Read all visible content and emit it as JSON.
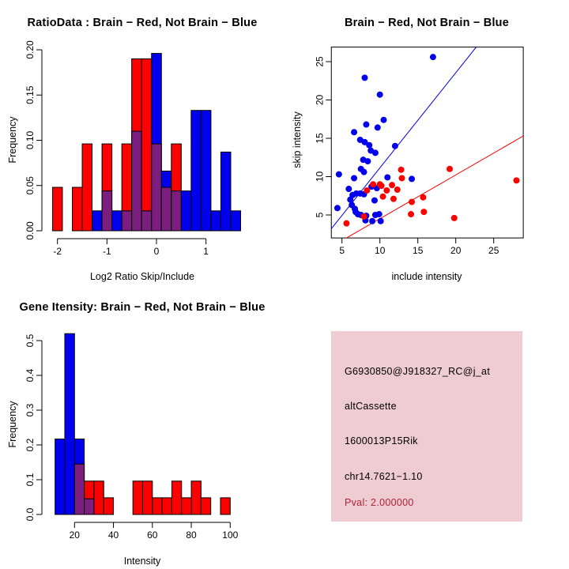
{
  "figure": {
    "background": "#ffffff",
    "colors": {
      "brain_red": "#ff0000",
      "not_brain_blue": "#0000ee",
      "overlap_purple": "#7c1d80",
      "axis": "#000000",
      "info_box_bg": "#eac9d3",
      "pval_text": "#b02235"
    }
  },
  "chart_data": [
    {
      "id": "ratio_histogram",
      "type": "bar",
      "title": "RatioData : Brain − Red, Not Brain − Blue",
      "xlabel": "Log2 Ratio Skip/Include",
      "ylabel": "Frequency",
      "note": "overlapping histograms; purple = red/blue overlap",
      "xlim": [
        -2.35,
        1.85
      ],
      "ylim": [
        0,
        0.2
      ],
      "xticks": [
        "-2",
        "-1",
        "0",
        "1"
      ],
      "xtick_values": [
        -2,
        -1,
        0,
        1
      ],
      "yticks": [
        "0.00",
        "0.05",
        "0.10",
        "0.15",
        "0.20"
      ],
      "ytick_values": [
        0,
        0.05,
        0.1,
        0.15,
        0.2
      ],
      "bins": {
        "start": -2.1,
        "width": 0.2
      },
      "series": [
        {
          "name": "Brain (red)",
          "color_key": "brain_red",
          "values": [
            0.048,
            0,
            0.048,
            0.096,
            0,
            0.096,
            0,
            0.096,
            0.19,
            0.19,
            0.096,
            0.048,
            0.096,
            0,
            0,
            0,
            0,
            0,
            0
          ]
        },
        {
          "name": "Not Brain (blue)",
          "color_key": "not_brain_blue",
          "values": [
            0,
            0,
            0,
            0,
            0.022,
            0.044,
            0.022,
            0.022,
            0.11,
            0.022,
            0.196,
            0.066,
            0.044,
            0.044,
            0.133,
            0.133,
            0.022,
            0.087,
            0.022
          ]
        }
      ]
    },
    {
      "id": "intensity_scatter",
      "type": "scatter",
      "title": "Brain − Red, Not Brain − Blue",
      "xlabel": "include intensity",
      "ylabel": "skip intensity",
      "xlim": [
        3.6,
        28.9
      ],
      "ylim": [
        2.0,
        26.9
      ],
      "xticks": [
        "5",
        "10",
        "15",
        "20",
        "25"
      ],
      "xtick_values": [
        5,
        10,
        15,
        20,
        25
      ],
      "yticks": [
        "5",
        "10",
        "15",
        "20",
        "25"
      ],
      "ytick_values": [
        5,
        10,
        15,
        20,
        25
      ],
      "series": [
        {
          "name": "Not Brain (blue)",
          "color_key": "not_brain_blue",
          "points": [
            [
              17,
              25.6
            ],
            [
              8,
              22.9
            ],
            [
              10,
              20.7
            ],
            [
              10.5,
              17.4
            ],
            [
              8.2,
              16.8
            ],
            [
              9.7,
              16.4
            ],
            [
              6.6,
              15.8
            ],
            [
              7.4,
              14.8
            ],
            [
              8,
              14.5
            ],
            [
              8.6,
              14.1
            ],
            [
              12,
              14
            ],
            [
              8.8,
              13.4
            ],
            [
              9.4,
              13.1
            ],
            [
              7.8,
              12.2
            ],
            [
              8.4,
              12
            ],
            [
              7.5,
              11
            ],
            [
              7.9,
              10.6
            ],
            [
              4.6,
              10.3
            ],
            [
              6.6,
              9.8
            ],
            [
              11,
              9.9
            ],
            [
              14.2,
              9.7
            ],
            [
              5.9,
              8.4
            ],
            [
              8.9,
              8.7
            ],
            [
              9.6,
              8.5
            ],
            [
              6.9,
              7.8
            ],
            [
              7.4,
              7.8
            ],
            [
              7.9,
              7.7
            ],
            [
              6.4,
              7.6
            ],
            [
              6.1,
              7
            ],
            [
              9.3,
              6.9
            ],
            [
              6.3,
              6.3
            ],
            [
              4.4,
              5.9
            ],
            [
              6.7,
              5.8
            ],
            [
              6.8,
              5.4
            ],
            [
              7.1,
              5.1
            ],
            [
              7.5,
              5
            ],
            [
              8.2,
              4.9
            ],
            [
              9.4,
              5
            ],
            [
              9.9,
              5.1
            ],
            [
              8.1,
              4.3
            ],
            [
              9,
              4.2
            ],
            [
              10.1,
              4.2
            ]
          ]
        },
        {
          "name": "Brain (red)",
          "color_key": "brain_red",
          "points": [
            [
              5.6,
              3.9
            ],
            [
              7.9,
              4.8
            ],
            [
              8.3,
              8.2
            ],
            [
              9.1,
              9
            ],
            [
              10,
              9
            ],
            [
              10.2,
              8.8
            ],
            [
              10.9,
              8.2
            ],
            [
              11.6,
              8.9
            ],
            [
              12.3,
              8.3
            ],
            [
              10.4,
              7.4
            ],
            [
              11.8,
              7.1
            ],
            [
              12.8,
              10.9
            ],
            [
              12.9,
              9.8
            ],
            [
              14.2,
              6.7
            ],
            [
              14.1,
              5.1
            ],
            [
              15.7,
              7.3
            ],
            [
              15.8,
              5.4
            ],
            [
              19.2,
              11
            ],
            [
              19.8,
              4.6
            ],
            [
              28,
              9.5
            ]
          ]
        }
      ],
      "fit_lines": [
        {
          "name": "not-brain-fit",
          "color_key": "not_brain_blue",
          "x1": 3.6,
          "y1": 3.2,
          "x2": 22.7,
          "y2": 26.9
        },
        {
          "name": "brain-fit",
          "color_key": "brain_red",
          "x1": 5.6,
          "y1": 2.0,
          "x2": 28.9,
          "y2": 15.3
        }
      ]
    },
    {
      "id": "gene_intensity_histogram",
      "type": "bar",
      "title": "Gene Itensity: Brain − Red, Not Brain − Blue",
      "xlabel": "Intensity",
      "ylabel": "Frequency",
      "note": "overlapping histograms; purple = red/blue overlap",
      "xlim": [
        7.5,
        107
      ],
      "ylim": [
        0,
        0.52
      ],
      "xticks": [
        "20",
        "40",
        "60",
        "80",
        "100"
      ],
      "xtick_values": [
        20,
        40,
        60,
        80,
        100
      ],
      "yticks": [
        "0.0",
        "0.1",
        "0.2",
        "0.3",
        "0.4",
        "0.5"
      ],
      "ytick_values": [
        0,
        0.1,
        0.2,
        0.3,
        0.4,
        0.5
      ],
      "bins": {
        "start": 10,
        "width": 5
      },
      "series": [
        {
          "name": "Brain (red)",
          "color_key": "brain_red",
          "values": [
            0,
            0,
            0.145,
            0.096,
            0.096,
            0.048,
            0,
            0,
            0.096,
            0.096,
            0.048,
            0.048,
            0.096,
            0.048,
            0.096,
            0.048,
            0,
            0.048
          ]
        },
        {
          "name": "Not Brain (blue)",
          "color_key": "not_brain_blue",
          "values": [
            0.217,
            0.52,
            0.217,
            0.045,
            0,
            0,
            0,
            0,
            0,
            0,
            0,
            0,
            0,
            0,
            0,
            0,
            0,
            0
          ]
        }
      ]
    },
    {
      "id": "gene_info",
      "type": "table",
      "lines": [
        {
          "label": "probe_id",
          "text": "G6930850@J918327_RC@j_at"
        },
        {
          "label": "splice_type",
          "text": "altCassette"
        },
        {
          "label": "gene_symbol",
          "text": "1600013P15Rik"
        },
        {
          "label": "locus",
          "text": "chr14.7621−1.10"
        },
        {
          "label": "pval",
          "text": "Pval: 2.000000"
        }
      ]
    }
  ]
}
